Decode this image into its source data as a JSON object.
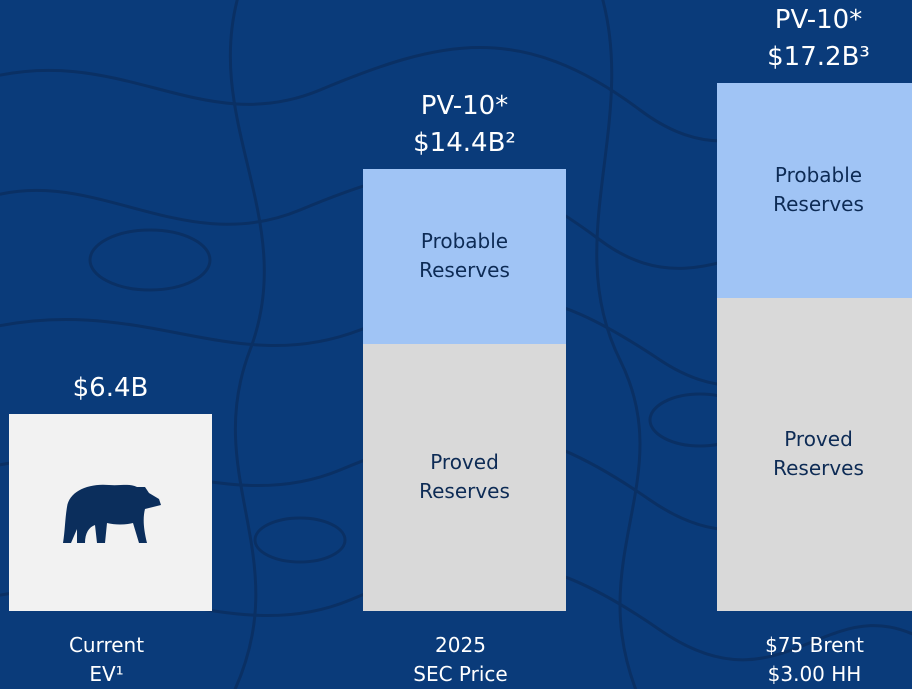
{
  "chart_data": {
    "type": "bar",
    "categories": [
      [
        "Current",
        "EV¹"
      ],
      [
        "2025",
        "SEC Price"
      ],
      [
        "$75 Brent",
        "$3.00 HH"
      ]
    ],
    "totals": [
      6.4,
      14.4,
      17.2
    ],
    "value_labels": [
      "$6.4B",
      "$14.4B²",
      "$17.2B³"
    ],
    "total_prefix": [
      null,
      "PV-10*",
      "PV-10*"
    ],
    "total_color": "#f2f2f2",
    "series": [
      {
        "name": "Proved Reserves",
        "color": "#d9d9d9",
        "values": [
          null,
          8.7,
          10.2
        ]
      },
      {
        "name": "Probable Reserves",
        "color": "#a0c4f5",
        "values": [
          null,
          5.7,
          7.0
        ]
      }
    ],
    "ylim": [
      0,
      18
    ]
  }
}
